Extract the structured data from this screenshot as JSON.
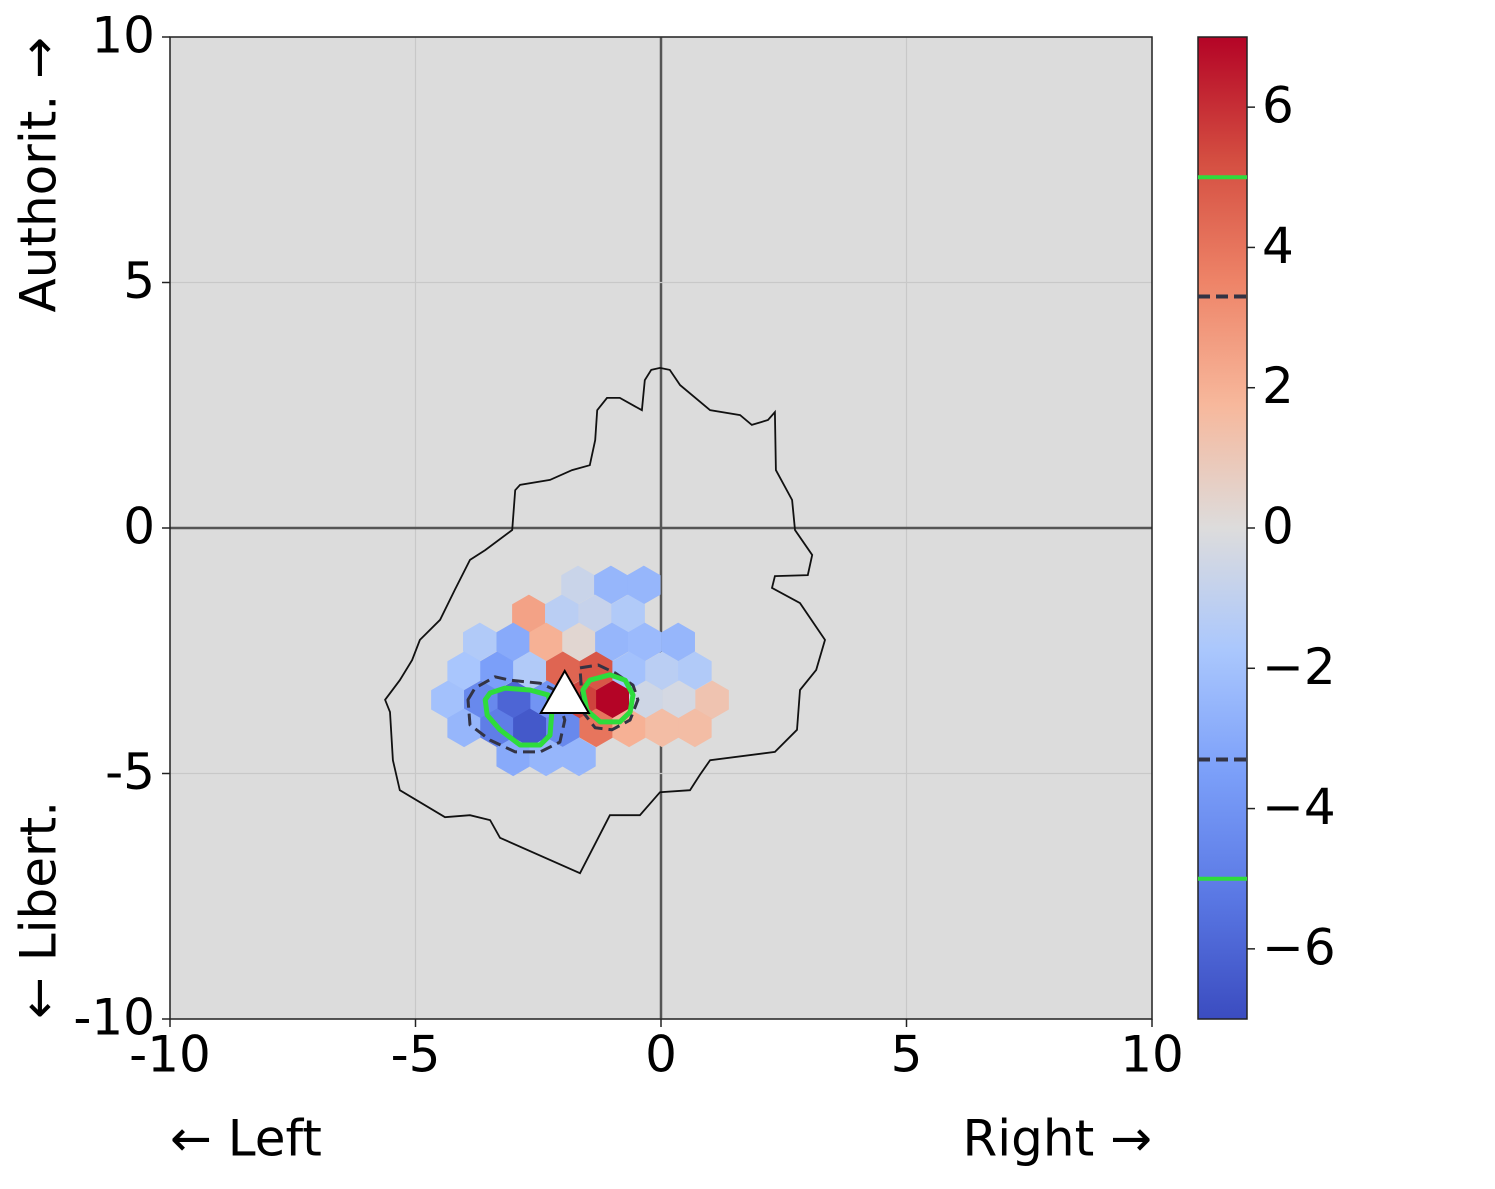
{
  "chart_data": {
    "type": "hexbin",
    "x_label_left": "← Left",
    "x_label_right": "Right →",
    "y_label_top": "Authorit. →",
    "y_label_bottom": "← Libert.",
    "xlim": [
      -10,
      10
    ],
    "ylim": [
      -10,
      10
    ],
    "xticks": [
      -10,
      -5,
      0,
      5,
      10
    ],
    "yticks": [
      -10,
      -5,
      0,
      5,
      10
    ],
    "grid": true,
    "colormap": "coolwarm",
    "clim": [
      -7,
      7
    ],
    "cticks": [
      {
        "value": -6,
        "label": "−6"
      },
      {
        "value": -4,
        "label": "−4"
      },
      {
        "value": -2,
        "label": "−2"
      },
      0,
      2,
      4,
      6
    ],
    "x": [
      -1.69,
      -1.02,
      -0.35,
      -2.69,
      -2.02,
      -1.34,
      -0.67,
      -3.69,
      -3.01,
      -2.34,
      -1.67,
      -1.0,
      -0.33,
      0.35,
      -4.01,
      -3.34,
      -2.67,
      -2.0,
      -1.32,
      -0.65,
      0.02,
      0.69,
      -4.34,
      -3.67,
      -2.99,
      -2.32,
      -1.65,
      -0.98,
      -0.31,
      0.37,
      1.04,
      -4.01,
      -3.34,
      -2.67,
      -2.0,
      -1.32,
      -0.65,
      0.02,
      0.69,
      -3.01,
      -2.34,
      -1.67
    ],
    "y": [
      -1.16,
      -1.16,
      -1.16,
      -1.75,
      -1.75,
      -1.75,
      -1.75,
      -2.32,
      -2.32,
      -2.32,
      -2.32,
      -2.32,
      -2.32,
      -2.32,
      -2.91,
      -2.91,
      -2.91,
      -2.91,
      -2.91,
      -2.91,
      -2.91,
      -2.91,
      -3.5,
      -3.5,
      -3.5,
      -3.5,
      -3.5,
      -3.5,
      -3.5,
      -3.5,
      -3.5,
      -4.07,
      -4.07,
      -4.07,
      -4.07,
      -4.07,
      -4.07,
      -4.07,
      -4.07,
      -4.66,
      -4.66,
      -4.66
    ],
    "values": [
      -0.7,
      -2.5,
      -2.5,
      2.5,
      -1.2,
      -0.8,
      -1.5,
      -1.5,
      -3.0,
      2.0,
      0.3,
      -2.5,
      -2.3,
      -2.5,
      -1.8,
      -3.5,
      -1.5,
      4.5,
      5.0,
      -2.0,
      -1.2,
      -1.5,
      -2.0,
      -4.5,
      -6.0,
      -4.0,
      5.5,
      7.0,
      -0.5,
      -0.3,
      1.2,
      -2.5,
      -5.0,
      -6.5,
      -4.5,
      4.0,
      2.0,
      1.5,
      1.5,
      -3.0,
      -2.5,
      -2.5
    ],
    "outline": {
      "color": "#111111",
      "x": [
        -0.2,
        -0.02,
        0.18,
        0.39,
        1.0,
        1.61,
        1.85,
        2.18,
        2.32,
        2.34,
        2.67,
        2.73,
        3.08,
        2.99,
        2.32,
        2.26,
        2.83,
        3.34,
        3.16,
        2.83,
        2.77,
        2.32,
        1.0,
        0.79,
        0.59,
        -0.02,
        -0.43,
        -1.04,
        -1.65,
        -3.28,
        -3.48,
        -3.89,
        -4.4,
        -5.32,
        -5.46,
        -5.52,
        -5.62,
        -5.32,
        -5.07,
        -4.91,
        -4.5,
        -4.2,
        -3.89,
        -3.58,
        -3.03,
        -2.97,
        -2.87,
        -2.26,
        -1.81,
        -1.45,
        -1.34,
        -1.3,
        -1.1,
        -0.84,
        -0.39,
        -0.33
      ],
      "y": [
        3.22,
        3.26,
        3.22,
        2.91,
        2.4,
        2.3,
        2.1,
        2.2,
        2.36,
        1.18,
        0.57,
        -0.04,
        -0.55,
        -0.96,
        -0.98,
        -1.22,
        -1.53,
        -2.28,
        -2.89,
        -3.3,
        -4.11,
        -4.56,
        -4.73,
        -5.03,
        -5.34,
        -5.38,
        -5.85,
        -5.85,
        -7.03,
        -6.31,
        -5.95,
        -5.85,
        -5.89,
        -5.34,
        -4.73,
        -3.75,
        -3.5,
        -3.1,
        -2.69,
        -2.28,
        -1.87,
        -1.26,
        -0.65,
        -0.45,
        -0.04,
        0.77,
        0.88,
        0.98,
        1.18,
        1.28,
        1.79,
        2.4,
        2.65,
        2.65,
        2.4,
        3.01
      ]
    },
    "contours": [
      {
        "level": -3.3,
        "color": "#333344",
        "style": "dashed",
        "x": [
          -3.93,
          -3.79,
          -3.38,
          -3.08,
          -2.46,
          -2.16,
          -1.96,
          -2.06,
          -2.46,
          -2.97,
          -3.48,
          -3.89
        ],
        "y": [
          -3.5,
          -3.26,
          -3.03,
          -3.1,
          -3.16,
          -3.3,
          -3.91,
          -4.36,
          -4.56,
          -4.56,
          -4.32,
          -4.01
        ]
      },
      {
        "level": -5,
        "color": "#2edc3c",
        "style": "solid",
        "x": [
          -3.58,
          -3.48,
          -3.18,
          -2.67,
          -2.3,
          -2.22,
          -2.26,
          -2.46,
          -2.87,
          -3.28,
          -3.54
        ],
        "y": [
          -3.5,
          -3.36,
          -3.26,
          -3.3,
          -3.4,
          -3.71,
          -4.22,
          -4.42,
          -4.42,
          -4.11,
          -3.81
        ]
      },
      {
        "level": 3.3,
        "color": "#333344",
        "style": "dashed",
        "x": [
          -1.65,
          -1.28,
          -0.94,
          -0.57,
          -0.47,
          -0.63,
          -1.0,
          -1.34,
          -1.59
        ],
        "y": [
          -2.85,
          -2.79,
          -2.95,
          -3.2,
          -3.5,
          -3.91,
          -4.11,
          -4.07,
          -3.75
        ]
      },
      {
        "level": 5,
        "color": "#2edc3c",
        "style": "solid",
        "x": [
          -1.59,
          -1.45,
          -1.04,
          -0.73,
          -0.57,
          -0.63,
          -0.84,
          -1.24,
          -1.51
        ],
        "y": [
          -3.3,
          -3.1,
          -2.99,
          -3.1,
          -3.4,
          -3.75,
          -3.95,
          -3.95,
          -3.71
        ]
      }
    ],
    "marker": {
      "x": -1.96,
      "y": -3.4,
      "color": "#ffffff"
    }
  }
}
